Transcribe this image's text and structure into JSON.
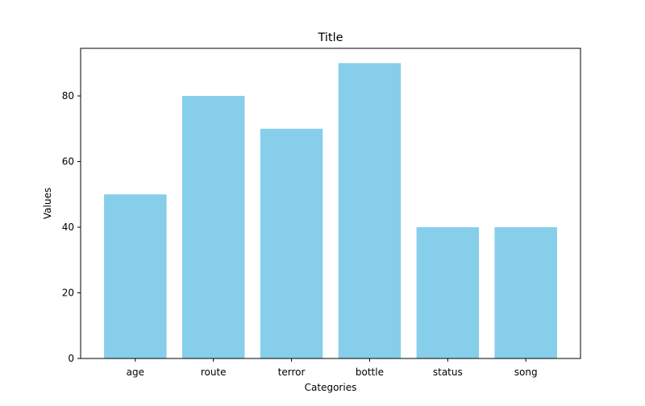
{
  "chart_data": {
    "type": "bar",
    "title": "Title",
    "xlabel": "Categories",
    "ylabel": "Values",
    "categories": [
      "age",
      "route",
      "terror",
      "bottle",
      "status",
      "song"
    ],
    "values": [
      50,
      80,
      70,
      90,
      40,
      40
    ],
    "ylim": [
      0,
      94.5
    ],
    "yticks": [
      0,
      20,
      40,
      60,
      80
    ],
    "bar_color": "#87ceeb",
    "grid": false
  }
}
